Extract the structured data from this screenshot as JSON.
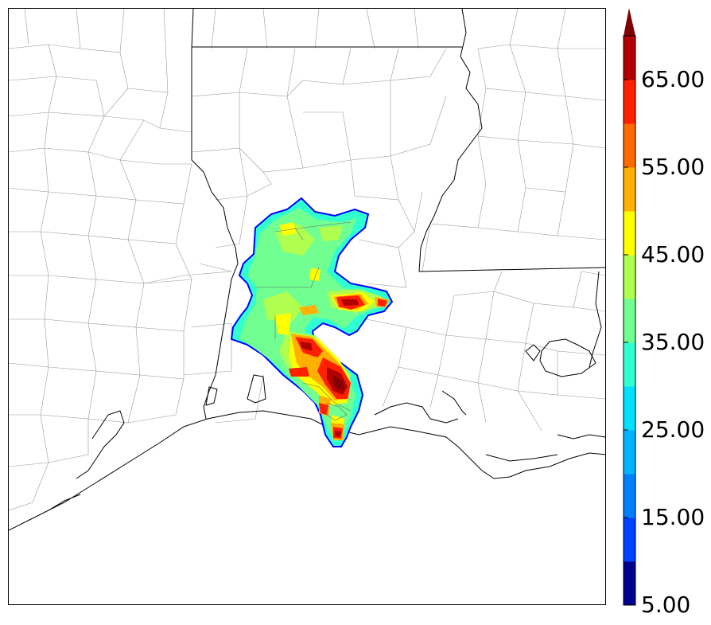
{
  "colorbar": {
    "labels": [
      "65.00",
      "55.00",
      "45.00",
      "35.00",
      "25.00",
      "15.00",
      "5.00"
    ],
    "label_values": [
      65,
      55,
      45,
      35,
      25,
      15,
      5
    ],
    "min": 5,
    "max": 70,
    "step": 5,
    "extend": "max",
    "colors": [
      "#00008f",
      "#0000ff",
      "#0040ff",
      "#0080ff",
      "#00b4ff",
      "#00e0ff",
      "#30ffd0",
      "#70ff90",
      "#b0ff50",
      "#ffff00",
      "#ffb000",
      "#ff6a00",
      "#ff2000",
      "#b00000",
      "#800000"
    ]
  },
  "map": {
    "region": "Louisiana and surrounding states",
    "field_colors": {
      "outline": "#0000ff",
      "teal": "#30ffd0",
      "green": "#70ff90",
      "lime": "#b0ff50",
      "yellow": "#ffff00",
      "orange": "#ffb000",
      "darkorange": "#ff6a00",
      "red": "#ff2000",
      "darkred": "#b00000",
      "maroon": "#800000"
    }
  }
}
